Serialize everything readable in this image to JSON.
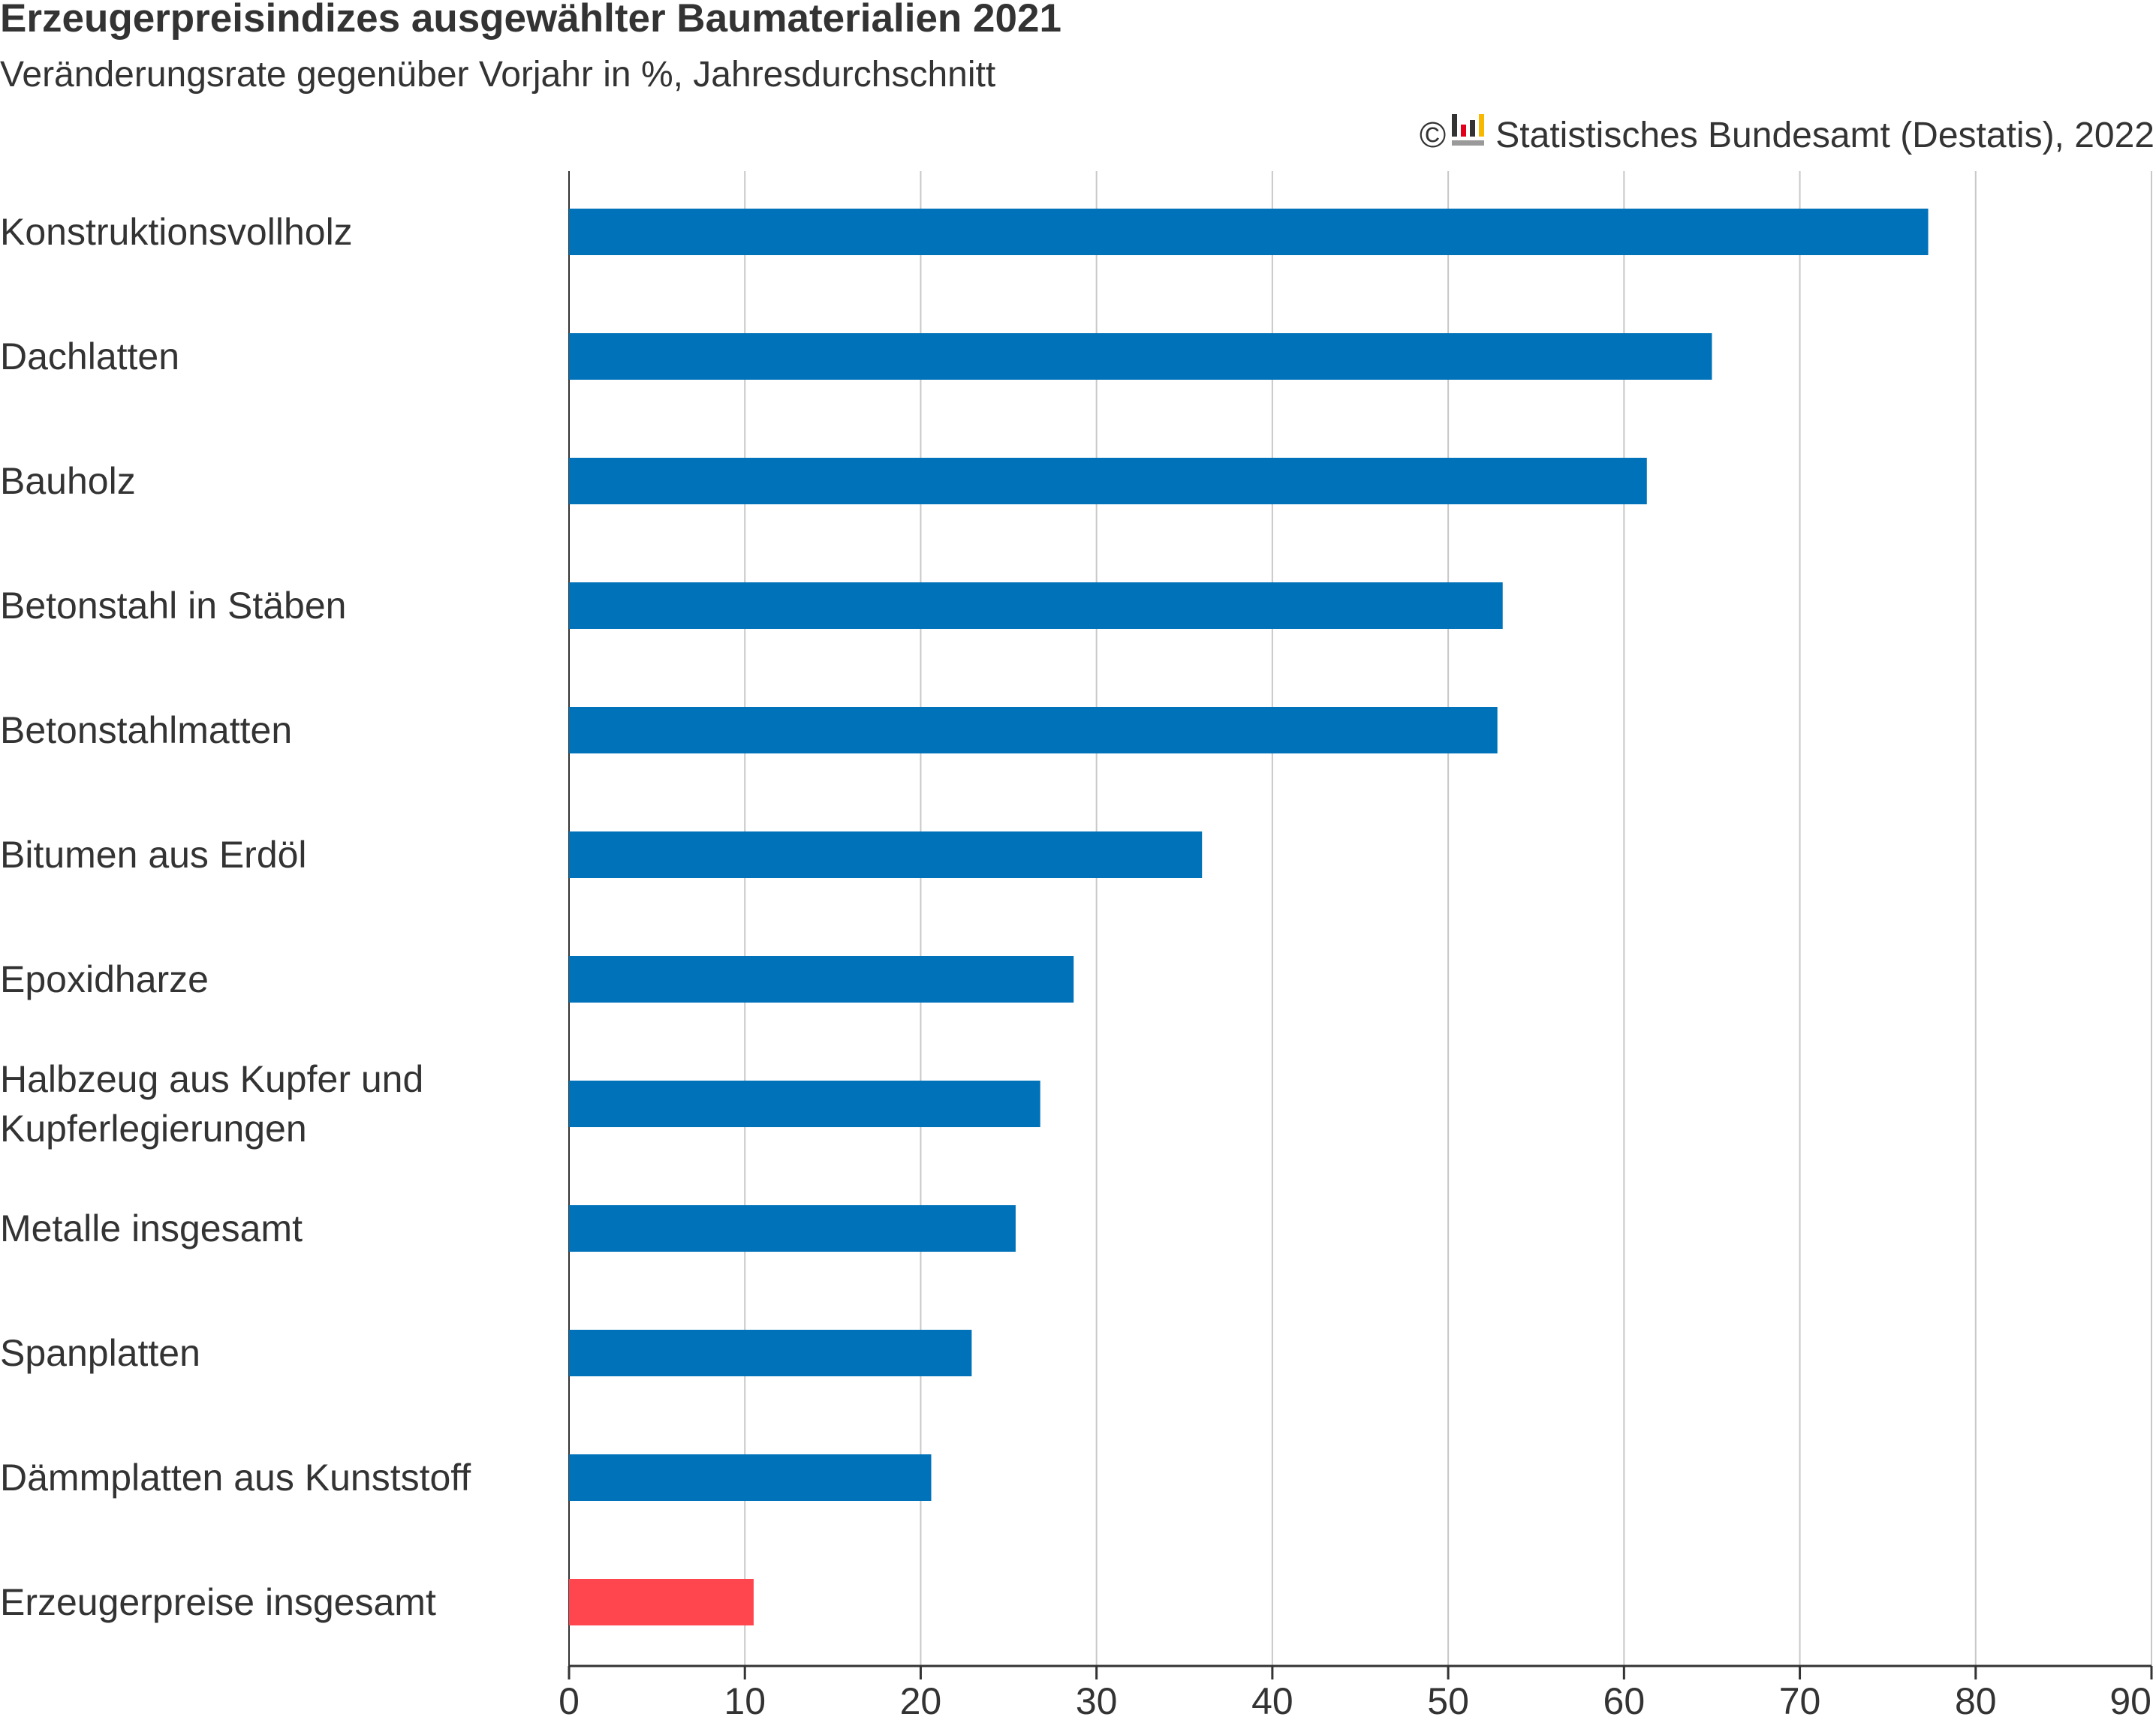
{
  "header": {
    "title": "Erzeugerpreisindizes ausgewählter Baumaterialien 2021",
    "subtitle": "Veränderungsrate gegenüber Vorjahr in %, Jahresdurchschnitt",
    "copyright_symbol": "©",
    "source": "Statistisches Bundesamt (Destatis), 2022",
    "logo_icon": "destatis-logo-icon"
  },
  "colors": {
    "bar_default": "#0072B9",
    "bar_highlight": "#FF464F",
    "grid": "#c8c8c8",
    "axis": "#333333"
  },
  "chart_data": {
    "type": "bar",
    "orientation": "horizontal",
    "title": "Erzeugerpreisindizes ausgewählter Baumaterialien 2021",
    "subtitle": "Veränderungsrate gegenüber Vorjahr in %, Jahresdurchschnitt",
    "categories": [
      "Konstruktionsvollholz",
      "Dachlatten",
      "Bauholz",
      "Betonstahl in Stäben",
      "Betonstahlmatten",
      "Bitumen aus Erdöl",
      "Epoxidharze",
      "Halbzeug aus Kupfer und Kupferlegierungen",
      "Metalle insgesamt",
      "Spanplatten",
      "Dämmplatten aus Kunststoff",
      "Erzeugerpreise insgesamt"
    ],
    "category_label_lines": [
      [
        "Konstruktionsvollholz"
      ],
      [
        "Dachlatten"
      ],
      [
        "Bauholz"
      ],
      [
        "Betonstahl in Stäben"
      ],
      [
        "Betonstahlmatten"
      ],
      [
        "Bitumen aus Erdöl"
      ],
      [
        "Epoxidharze"
      ],
      [
        "Halbzeug aus Kupfer und",
        "Kupferlegierungen"
      ],
      [
        "Metalle insgesamt"
      ],
      [
        "Spanplatten"
      ],
      [
        "Dämmplatten aus Kunststoff"
      ],
      [
        "Erzeugerpreise insgesamt"
      ]
    ],
    "values": [
      77.3,
      65.0,
      61.3,
      53.1,
      52.8,
      36.0,
      28.7,
      26.8,
      25.4,
      22.9,
      20.6,
      10.5
    ],
    "highlight_index": 11,
    "xlim": [
      0,
      90
    ],
    "xticks": [
      0,
      10,
      20,
      30,
      40,
      50,
      60,
      70,
      80,
      90
    ],
    "xlabel": "",
    "ylabel": "",
    "grid": "vertical"
  }
}
